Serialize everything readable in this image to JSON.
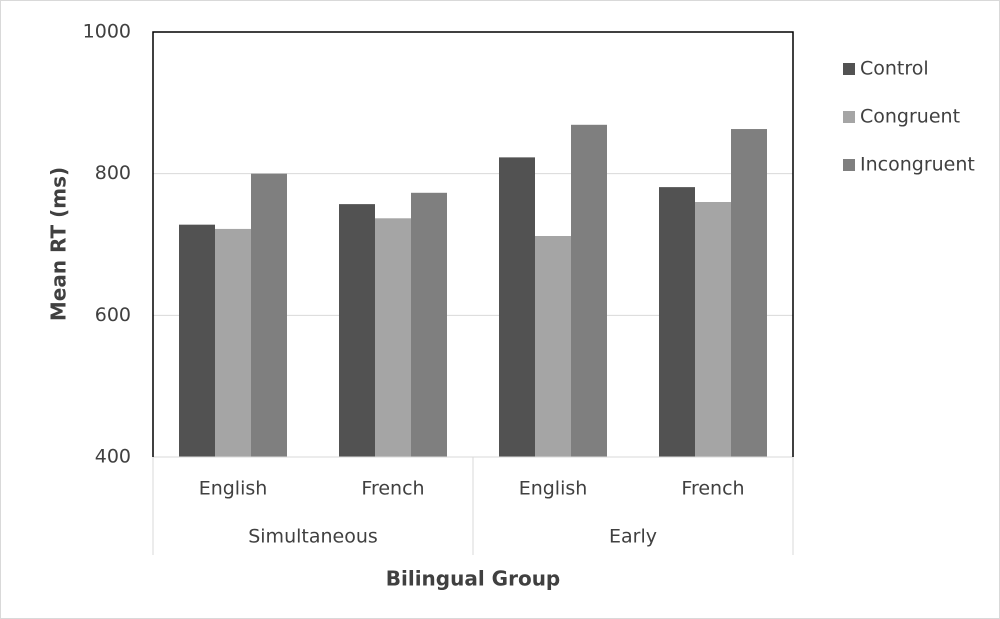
{
  "chart_data": {
    "type": "bar",
    "y_label": "Mean RT (ms)",
    "x_label": "Bilingual Group",
    "categories": [
      "English",
      "French",
      "English",
      "French"
    ],
    "groups": [
      "Simultaneous",
      "Early"
    ],
    "series": [
      {
        "name": "Control",
        "color": "#525252",
        "values": [
          728,
          757,
          823,
          781
        ]
      },
      {
        "name": "Congruent",
        "color": "#a5a5a5",
        "values": [
          722,
          737,
          712,
          760
        ]
      },
      {
        "name": "Incongruent",
        "color": "#7f7f7f",
        "values": [
          800,
          773,
          869,
          863
        ]
      }
    ],
    "ylim": [
      400,
      1000
    ],
    "yticks": [
      400,
      600,
      800,
      1000
    ],
    "grid": true,
    "legend": "right"
  }
}
